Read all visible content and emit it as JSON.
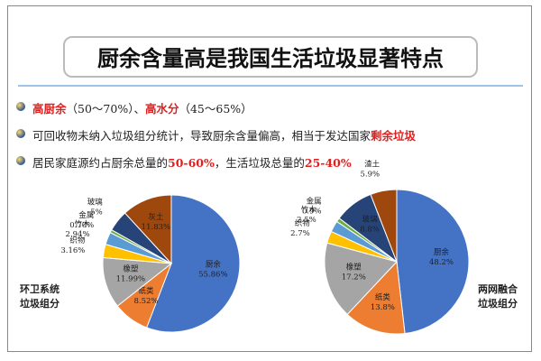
{
  "slide": {
    "title": "厨余含量高是我国生活垃圾显著特点",
    "bullets": [
      [
        {
          "text": "高厨余",
          "color": "#e02020"
        },
        {
          "text": "（50～70%）、",
          "color": "#222222"
        },
        {
          "text": "高水分",
          "color": "#e02020"
        },
        {
          "text": "（45～65%）",
          "color": "#222222"
        }
      ],
      [
        {
          "text": "可回收物未纳入垃圾组分统计，导致厨余含量偏高，相当于发达国家",
          "color": "#222222"
        },
        {
          "text": "剩余垃圾",
          "color": "#e02020"
        }
      ],
      [
        {
          "text": "居民家庭源约占厨余总量的",
          "color": "#222222"
        },
        {
          "text": "50-60%",
          "color": "#e02020"
        },
        {
          "text": "，生活垃圾总量的",
          "color": "#222222"
        },
        {
          "text": "25-40%",
          "color": "#e02020"
        }
      ]
    ]
  },
  "chart_data": [
    {
      "type": "pie",
      "caption": [
        "环卫系统",
        "垃圾组分"
      ],
      "categories": [
        "厨余",
        "纸类",
        "橡塑",
        "织物",
        "竹木",
        "金属",
        "玻璃",
        "灰土"
      ],
      "values": [
        55.86,
        8.52,
        11.99,
        3.16,
        2.94,
        0.7,
        5,
        11.83
      ],
      "value_labels": [
        "55.86%",
        "8.52%",
        "11.99%",
        "3.16%",
        "2.94%",
        "0.70%",
        "5%",
        "11.83%"
      ],
      "colors": [
        "#4472c4",
        "#ed7d31",
        "#a5a5a5",
        "#ffc000",
        "#5b9bd5",
        "#70ad47",
        "#264478",
        "#9e480e"
      ]
    },
    {
      "type": "pie",
      "caption": [
        "两网融合",
        "垃圾组分"
      ],
      "categories": [
        "厨余",
        "纸类",
        "橡塑",
        "织物",
        "竹木",
        "金属",
        "玻璃",
        "渣土"
      ],
      "values": [
        48.2,
        13.8,
        17.2,
        2.7,
        2.5,
        0.9,
        8.8,
        5.9
      ],
      "value_labels": [
        "48.2%",
        "13.8%",
        "17.2%",
        "2.7%",
        "2.5%",
        "0.9%",
        "8.8%",
        "5.9%"
      ],
      "colors": [
        "#4472c4",
        "#ed7d31",
        "#a5a5a5",
        "#ffc000",
        "#5b9bd5",
        "#70ad47",
        "#264478",
        "#9e480e"
      ]
    }
  ]
}
